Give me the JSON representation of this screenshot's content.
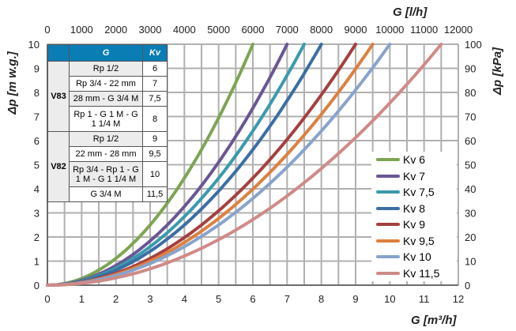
{
  "chart_data": {
    "type": "line",
    "xlabel": "G [m³/h]",
    "x2label": "G [l/h]",
    "ylabel": "Δp [m w.g.]",
    "y2label": "Δp [kPa]",
    "xlim": [
      0,
      12
    ],
    "ylim": [
      0,
      10
    ],
    "x2lim": [
      0,
      12000
    ],
    "y2lim": [
      0,
      100
    ],
    "xticks": [
      "0",
      "1",
      "2",
      "3",
      "4",
      "5",
      "6",
      "7",
      "8",
      "9",
      "10",
      "11",
      "12"
    ],
    "x2ticks": [
      "0",
      "1000",
      "2000",
      "3000",
      "4000",
      "5000",
      "6000",
      "7000",
      "8000",
      "9000",
      "10000",
      "11000",
      "12000"
    ],
    "yticks": [
      "0",
      "1",
      "2",
      "3",
      "4",
      "5",
      "6",
      "7",
      "8",
      "9",
      "10"
    ],
    "y2ticks": [
      "0",
      "10",
      "20",
      "30",
      "40",
      "50",
      "60",
      "70",
      "80",
      "90",
      "100"
    ],
    "grid": true,
    "legend_position": "bottom-right",
    "formula": "dp = 10*(G/Kv)^2",
    "series": [
      {
        "name": "Kv 6",
        "kv": 6,
        "color": "#7ea552"
      },
      {
        "name": "Kv 7",
        "kv": 7,
        "color": "#6a5694"
      },
      {
        "name": "Kv 7,5",
        "kv": 7.5,
        "color": "#3a9aae"
      },
      {
        "name": "Kv 8",
        "kv": 8,
        "color": "#3c6ea3"
      },
      {
        "name": "Kv 9",
        "kv": 9,
        "color": "#a5403f"
      },
      {
        "name": "Kv 9,5",
        "kv": 9.5,
        "color": "#dd8040"
      },
      {
        "name": "Kv 10",
        "kv": 10,
        "color": "#88a3cc"
      },
      {
        "name": "Kv 11,5",
        "kv": 11.5,
        "color": "#cf8a88"
      }
    ]
  },
  "table": {
    "headers": [
      "G",
      "Kv"
    ],
    "groups": [
      {
        "name": "V83",
        "rows": [
          [
            "Rp 1/2",
            "6"
          ],
          [
            "Rp 3/4 - 22 mm",
            "7"
          ],
          [
            "28 mm - G 3/4 M",
            "7,5"
          ],
          [
            "Rp 1 - G 1 M - G 1 1/4 M",
            "8"
          ]
        ]
      },
      {
        "name": "V82",
        "rows": [
          [
            "Rp 1/2",
            "9"
          ],
          [
            "22 mm - 28 mm",
            "9,5"
          ],
          [
            "Rp 3/4 - Rp 1 - G 1 M - G 1 1/4 M",
            "10"
          ],
          [
            "G 3/4 M",
            "11,5"
          ]
        ]
      }
    ]
  }
}
